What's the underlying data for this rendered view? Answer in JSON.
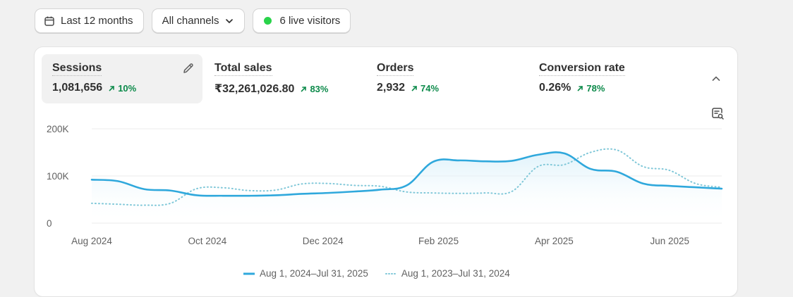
{
  "toolbar": {
    "date_range": "Last 12 months",
    "channels": "All channels",
    "live_visitors": "6 live visitors"
  },
  "metrics": [
    {
      "title": "Sessions",
      "value": "1,081,656",
      "change": "10%"
    },
    {
      "title": "Total sales",
      "value": "₹32,261,026.80",
      "change": "83%"
    },
    {
      "title": "Orders",
      "value": "2,932",
      "change": "74%"
    },
    {
      "title": "Conversion rate",
      "value": "0.26%",
      "change": "78%"
    }
  ],
  "colors": {
    "primary_line": "#2fa8dc",
    "comparison_line": "#7fc7d8",
    "positive": "#0c8a4a",
    "live": "#29d34a"
  },
  "chart_data": {
    "type": "line",
    "y_ticks": [
      "200K",
      "100K",
      "0"
    ],
    "y_tick_values": [
      200000,
      100000,
      0
    ],
    "ylim": [
      0,
      200000
    ],
    "x_tick_labels": [
      "Aug 2024",
      "Oct 2024",
      "Dec 2024",
      "Feb 2025",
      "Apr 2025",
      "Jun 2025"
    ],
    "grid": true,
    "legend_position": "bottom",
    "series": [
      {
        "name": "Aug 1, 2024–Jul 31, 2025",
        "style": "solid",
        "values": [
          92000,
          89000,
          72000,
          69000,
          59000,
          58000,
          58000,
          59000,
          62000,
          64000,
          67000,
          71000,
          80000,
          130000,
          133000,
          131000,
          132000,
          145000,
          148000,
          115000,
          109000,
          84000,
          79000,
          76000,
          73000
        ]
      },
      {
        "name": "Aug 1, 2023–Jul 31, 2024",
        "style": "dotted",
        "values": [
          42000,
          40000,
          38000,
          42000,
          73000,
          75000,
          69000,
          70000,
          83000,
          84000,
          80000,
          78000,
          66000,
          64000,
          63000,
          64000,
          67000,
          120000,
          124000,
          150000,
          155000,
          120000,
          112000,
          84000,
          76000
        ]
      }
    ]
  }
}
